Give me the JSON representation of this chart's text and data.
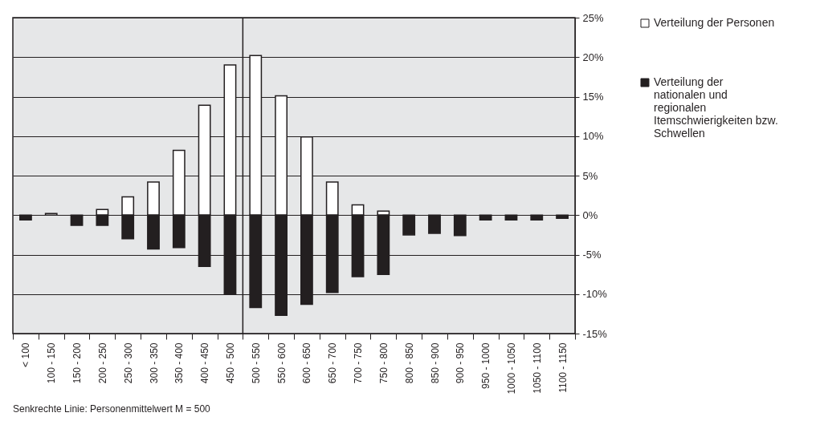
{
  "chart_data": {
    "type": "bar",
    "stacked": true,
    "categories": [
      "< 100",
      "100 - 150",
      "150 - 200",
      "200 - 250",
      "250 - 300",
      "300 - 350",
      "350 - 400",
      "400 - 450",
      "450 - 500",
      "500 - 550",
      "550 - 600",
      "600 - 650",
      "650 - 700",
      "700 - 750",
      "750 - 800",
      "800 - 850",
      "850 - 900",
      "900 - 950",
      "950 - 1000",
      "1000 - 1050",
      "1050 - 1100",
      "1100 - 1150"
    ],
    "series": [
      {
        "name": "Verteilung der Personen",
        "color": "#ffffff",
        "values": [
          null,
          0.2,
          null,
          0.7,
          2.3,
          4.2,
          8.2,
          13.9,
          19.0,
          20.2,
          15.1,
          9.9,
          4.2,
          1.3,
          0.5,
          null,
          null,
          null,
          null,
          null,
          null,
          null
        ]
      },
      {
        "name": "Verteilung der nationalen und regionalen Itemschwierigkeiten bzw. Schwellen",
        "color": "#231f20",
        "values": [
          -0.6,
          null,
          -1.3,
          -1.3,
          -3.0,
          -4.3,
          -4.1,
          -6.5,
          -10.0,
          -11.7,
          -12.7,
          -11.3,
          -9.8,
          -7.8,
          -7.5,
          -2.5,
          -2.3,
          -2.6,
          -0.6,
          -0.6,
          -0.6,
          -0.4
        ]
      }
    ],
    "ylim": [
      -15,
      25
    ],
    "yticks": [
      {
        "value": -15,
        "label": "-15%"
      },
      {
        "value": -10,
        "label": "-10%"
      },
      {
        "value": -5,
        "label": "-5%"
      },
      {
        "value": 0,
        "label": "0%"
      },
      {
        "value": 5,
        "label": "5%"
      },
      {
        "value": 10,
        "label": "10%"
      },
      {
        "value": 15,
        "label": "15%"
      },
      {
        "value": 20,
        "label": "20%"
      },
      {
        "value": 25,
        "label": "25%"
      }
    ],
    "grid": "y",
    "legend": "right",
    "ref_lines": [
      {
        "axis": "x",
        "value": "500 - 550"
      }
    ],
    "annotations": [
      "Senkrechte Linie: Personenmittelwert M = 500"
    ]
  }
}
